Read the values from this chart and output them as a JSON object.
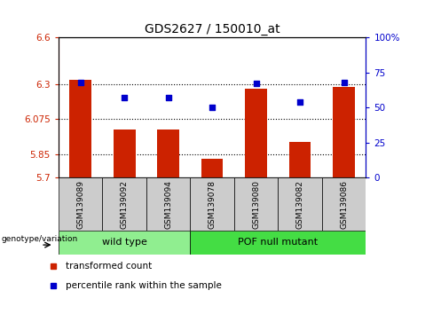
{
  "title": "GDS2627 / 150010_at",
  "samples": [
    "GSM139089",
    "GSM139092",
    "GSM139094",
    "GSM139078",
    "GSM139080",
    "GSM139082",
    "GSM139086"
  ],
  "bar_values": [
    6.33,
    6.01,
    6.01,
    5.82,
    6.27,
    5.93,
    6.28
  ],
  "percentile_values": [
    68,
    57,
    57,
    50,
    67,
    54,
    68
  ],
  "groups": [
    {
      "label": "wild type",
      "indices": [
        0,
        1,
        2
      ],
      "color": "#90ee90"
    },
    {
      "label": "POF null mutant",
      "indices": [
        3,
        4,
        5,
        6
      ],
      "color": "#44dd44"
    }
  ],
  "bar_color": "#cc2200",
  "dot_color": "#0000cc",
  "ylim_left": [
    5.7,
    6.6
  ],
  "ylim_right": [
    0,
    100
  ],
  "yticks_left": [
    5.7,
    5.85,
    6.075,
    6.3,
    6.6
  ],
  "yticks_right": [
    0,
    25,
    50,
    75,
    100
  ],
  "ytick_labels_left": [
    "5.7",
    "5.85",
    "6.075",
    "6.3",
    "6.6"
  ],
  "ytick_labels_right": [
    "0",
    "25",
    "50",
    "75",
    "100%"
  ],
  "hlines": [
    5.85,
    6.075,
    6.3
  ],
  "bar_width": 0.5,
  "genotype_label": "genotype/variation",
  "legend_items": [
    {
      "label": "transformed count",
      "color": "#cc2200"
    },
    {
      "label": "percentile rank within the sample",
      "color": "#0000cc"
    }
  ],
  "left_tick_color": "#cc2200",
  "right_tick_color": "#0000cc",
  "background_color": "#ffffff",
  "plot_bg_color": "#ffffff",
  "sample_label_bg": "#cccccc",
  "wild_type_color": "#90ee90",
  "pof_color": "#44dd44"
}
